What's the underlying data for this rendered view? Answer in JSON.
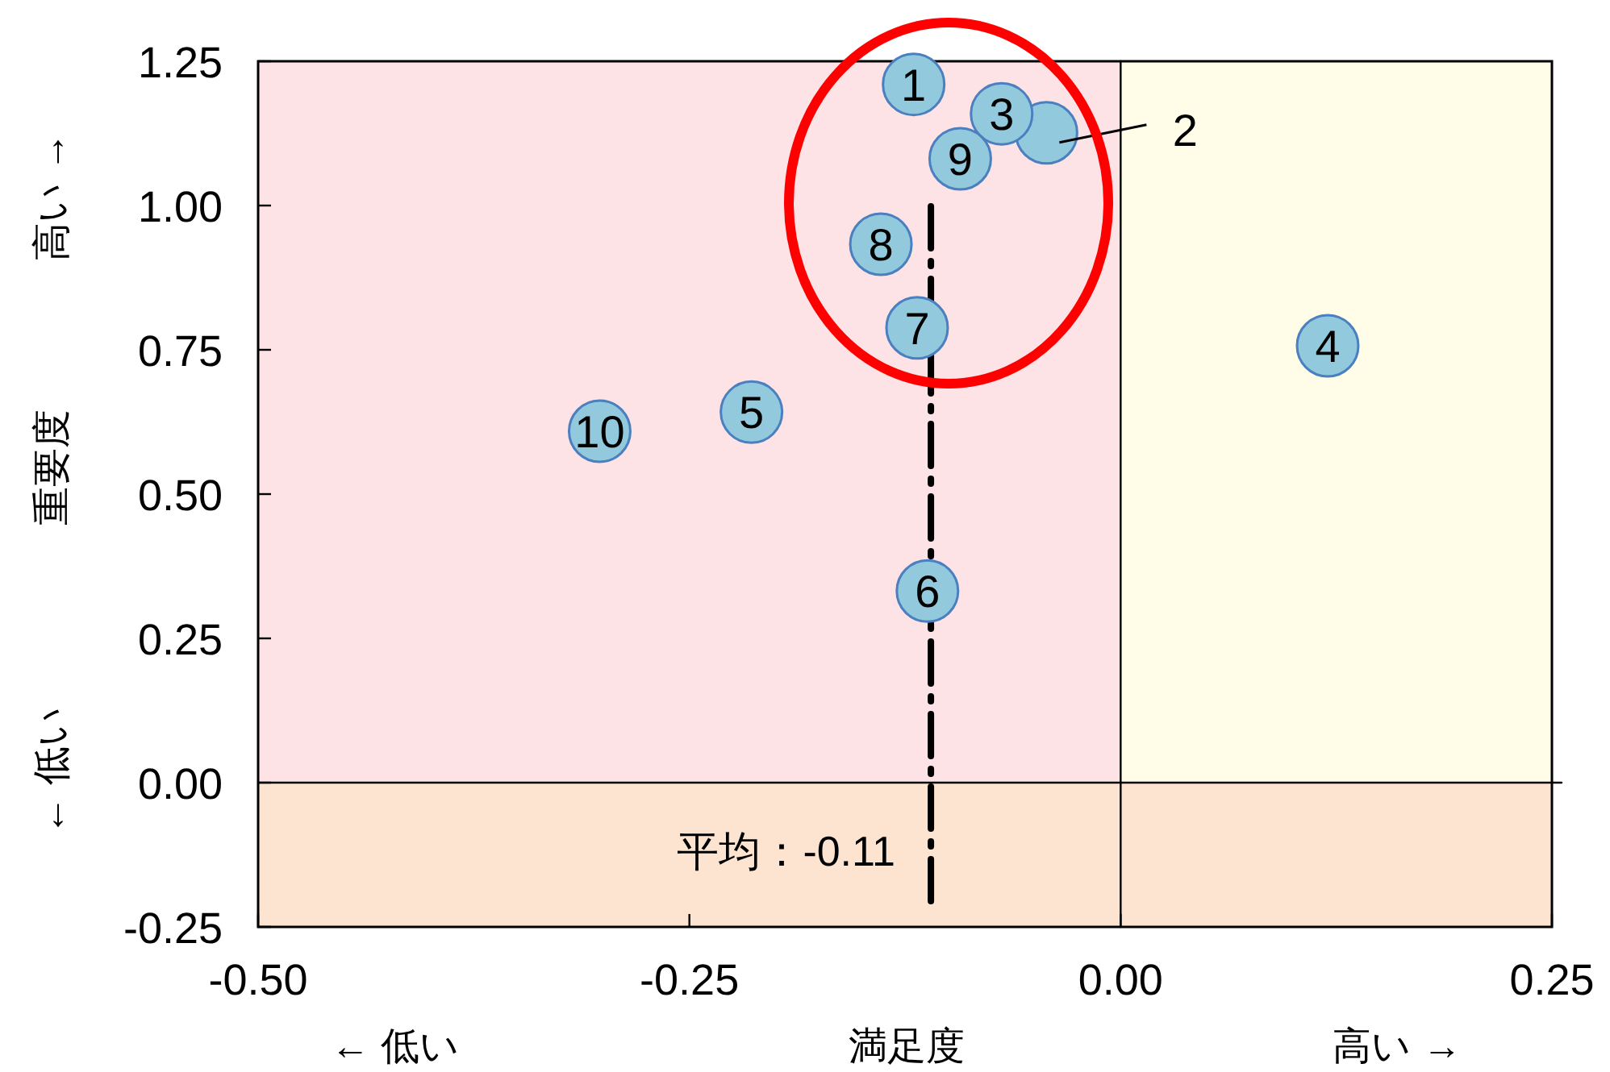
{
  "chart_data": {
    "type": "scatter",
    "xlabel": "満足度",
    "ylabel": "重要度",
    "x": [
      -0.12,
      -0.043,
      -0.069,
      0.12,
      -0.214,
      -0.112,
      -0.118,
      -0.139,
      -0.093,
      -0.302
    ],
    "values": [
      1.21,
      1.126,
      1.159,
      0.757,
      0.642,
      0.332,
      0.788,
      0.933,
      1.081,
      0.609
    ],
    "color": "#92c9dc",
    "marker": "circle",
    "xlim": [
      -0.5,
      0.25
    ],
    "xticks": [
      {
        "value": -0.5,
        "label": "-0.50"
      },
      {
        "value": -0.25,
        "label": "-0.25"
      },
      {
        "value": 0,
        "label": "0.00"
      },
      {
        "value": 0.25,
        "label": "0.25"
      }
    ],
    "ylim": [
      -0.25,
      1.25
    ],
    "yticks": [
      {
        "value": -0.25,
        "label": "-0.25"
      },
      {
        "value": 0,
        "label": "0.00"
      },
      {
        "value": 0.25,
        "label": "0.25"
      },
      {
        "value": 0.5,
        "label": "0.50"
      },
      {
        "value": 0.75,
        "label": "0.75"
      },
      {
        "value": 1,
        "label": "1.00"
      },
      {
        "value": 1.25,
        "label": "1.25"
      }
    ],
    "bands": [
      {
        "axis": "x",
        "from": -0.5,
        "to": 0,
        "color": "#fde3e6"
      },
      {
        "axis": "x",
        "from": 0,
        "to": 0.25,
        "color": "#fffde8"
      },
      {
        "axis": "y",
        "from": -0.25,
        "to": 0,
        "color": "#fde4d0"
      }
    ],
    "ref_lines": [
      {
        "axis": "x",
        "value": 0,
        "color": "#000000",
        "line_style": "solid"
      },
      {
        "axis": "y",
        "value": 0,
        "color": "#000000",
        "line_style": "solid"
      },
      {
        "axis": "x",
        "value": -0.11,
        "label": "平均：-0.11",
        "color": "#000000",
        "line_style": "dashdot"
      }
    ],
    "annotations": [
      "← 低い",
      "高い →",
      "高い →",
      "← 低い",
      {
        "text": "1",
        "x": -0.12,
        "y": 1.21
      },
      {
        "text": "2",
        "x": -0.043,
        "y": 1.126
      },
      {
        "text": "3",
        "x": -0.069,
        "y": 1.159
      },
      {
        "text": "4",
        "x": 0.12,
        "y": 0.757
      },
      {
        "text": "5",
        "x": -0.214,
        "y": 0.642
      },
      {
        "text": "6",
        "x": -0.112,
        "y": 0.332
      },
      {
        "text": "7",
        "x": -0.118,
        "y": 0.788
      },
      {
        "text": "8",
        "x": -0.139,
        "y": 0.933
      },
      {
        "text": "9",
        "x": -0.093,
        "y": 1.081
      },
      {
        "text": "10",
        "x": -0.302,
        "y": 0.609
      }
    ],
    "grid": false,
    "legend": false
  }
}
